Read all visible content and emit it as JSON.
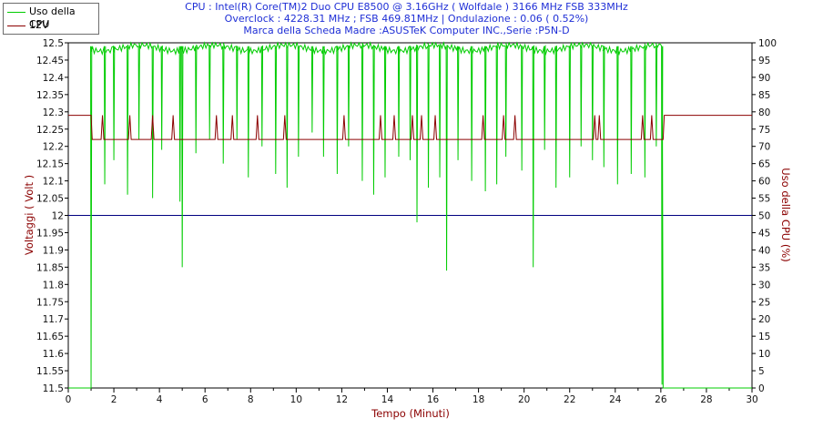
{
  "header": {
    "line1": "CPU : Intel(R) Core(TM)2 Duo CPU E8500 @ 3.16GHz ( Wolfdale ) 3166 MHz FSB 333MHz",
    "line2": "Overclock : 4228.31 MHz ; FSB 469.81MHz | Ondulazione : 0.06 ( 0.52%)",
    "line3": "Marca della Scheda Madre :ASUSTeK Computer INC.,Serie :P5N-D"
  },
  "legend": [
    {
      "label": "Uso della CPU",
      "color": "#00cc00"
    },
    {
      "label": "12V",
      "color": "#8b0000"
    }
  ],
  "chart_data": {
    "type": "line",
    "xlabel": "Tempo (Minuti)",
    "ylabel_left": "Voltaggi ( Volt )",
    "ylabel_right": "Uso della CPU (%)",
    "xlim": [
      0,
      30
    ],
    "ylim_left": [
      11.5,
      12.5
    ],
    "ylim_right": [
      0,
      100
    ],
    "x_ticks": [
      0,
      2,
      4,
      6,
      8,
      10,
      12,
      14,
      16,
      18,
      20,
      22,
      24,
      26,
      28,
      30
    ],
    "y_left_ticks": [
      "12.5",
      "12.45",
      "12.4",
      "12.35",
      "12.3",
      "12.25",
      "12.2",
      "12.15",
      "12.1",
      "12.05",
      "12",
      "11.95",
      "11.9",
      "11.85",
      "11.8",
      "11.75",
      "11.7",
      "11.65",
      "11.6",
      "11.55",
      "11.5"
    ],
    "y_right_ticks": [
      100,
      95,
      90,
      85,
      80,
      75,
      70,
      65,
      60,
      55,
      50,
      45,
      40,
      35,
      30,
      25,
      20,
      15,
      10,
      5,
      0
    ],
    "reference_line": {
      "y": 12.0,
      "color": "#000080"
    },
    "series": [
      {
        "name": "12V",
        "color": "#8b0000",
        "axis": "left",
        "idle_value": 12.29,
        "load_value": 12.22,
        "load_start": 1.0,
        "load_end": 26.1,
        "spikes_x": [
          1.5,
          2.7,
          3.7,
          4.6,
          6.5,
          7.2,
          8.3,
          9.5,
          12.1,
          13.7,
          14.3,
          15.1,
          15.5,
          16.1,
          18.2,
          19.1,
          19.6,
          23.1,
          23.3,
          25.2,
          25.6
        ]
      },
      {
        "name": "Uso della CPU",
        "color": "#00cc00",
        "axis": "right",
        "idle_value": 0,
        "load_value": 99,
        "load_start": 1.0,
        "load_end": 26.1,
        "dips": [
          [
            1.0,
            2
          ],
          [
            1.6,
            59
          ],
          [
            2.0,
            66
          ],
          [
            2.6,
            56
          ],
          [
            3.1,
            72
          ],
          [
            3.7,
            55
          ],
          [
            4.1,
            69
          ],
          [
            4.9,
            54
          ],
          [
            5.0,
            35
          ],
          [
            5.6,
            68
          ],
          [
            6.2,
            72
          ],
          [
            6.8,
            65
          ],
          [
            7.4,
            72
          ],
          [
            7.9,
            61
          ],
          [
            8.5,
            70
          ],
          [
            9.1,
            62
          ],
          [
            9.6,
            58
          ],
          [
            10.1,
            67
          ],
          [
            10.7,
            74
          ],
          [
            11.2,
            67
          ],
          [
            11.8,
            62
          ],
          [
            12.3,
            70
          ],
          [
            12.9,
            60
          ],
          [
            13.4,
            56
          ],
          [
            13.9,
            61
          ],
          [
            14.5,
            67
          ],
          [
            15.0,
            66
          ],
          [
            15.3,
            48
          ],
          [
            15.8,
            58
          ],
          [
            16.3,
            61
          ],
          [
            16.6,
            34
          ],
          [
            17.1,
            66
          ],
          [
            17.7,
            60
          ],
          [
            18.3,
            57
          ],
          [
            18.8,
            59
          ],
          [
            19.2,
            67
          ],
          [
            19.9,
            63
          ],
          [
            20.4,
            35
          ],
          [
            20.9,
            69
          ],
          [
            21.4,
            58
          ],
          [
            22.0,
            61
          ],
          [
            22.5,
            70
          ],
          [
            23.0,
            66
          ],
          [
            23.5,
            64
          ],
          [
            24.1,
            59
          ],
          [
            24.7,
            62
          ],
          [
            25.3,
            61
          ],
          [
            25.8,
            70
          ],
          [
            26.05,
            1
          ]
        ]
      }
    ]
  }
}
